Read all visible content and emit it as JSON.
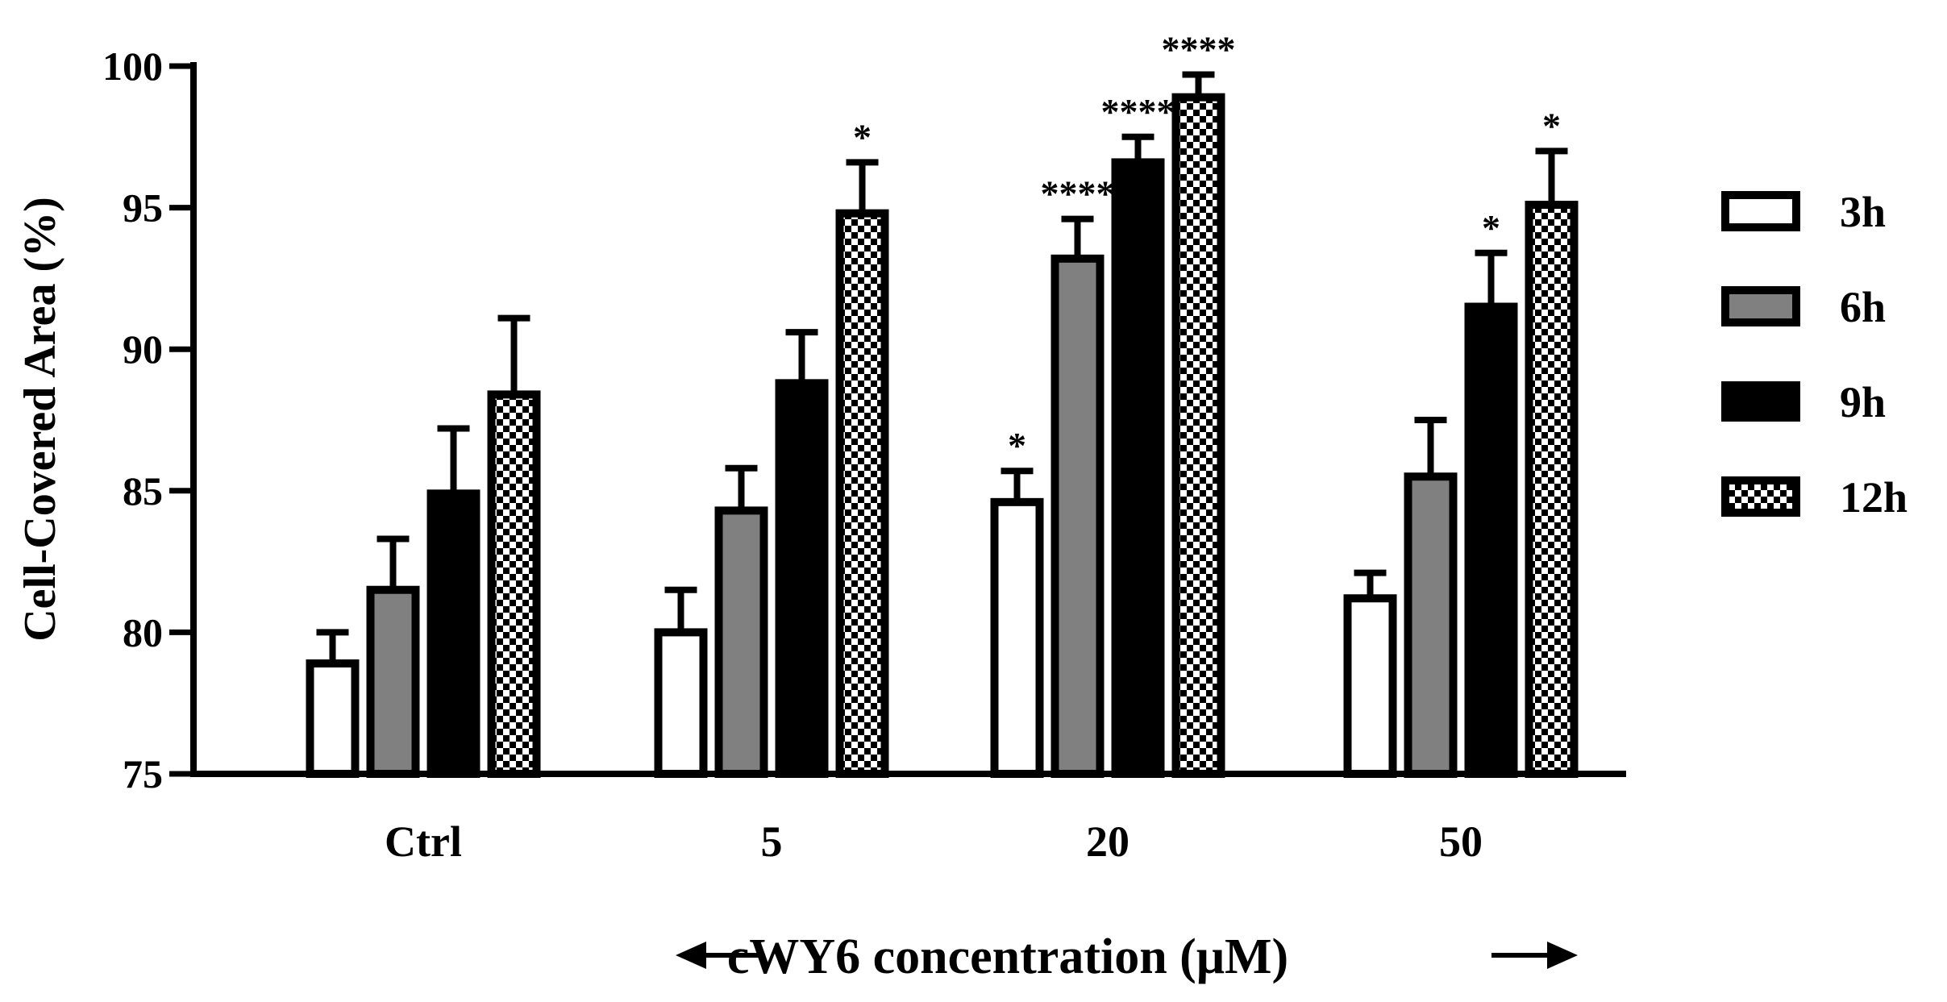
{
  "chart_data": {
    "type": "bar",
    "title": "",
    "ylabel": "Cell-Covered Area (%)",
    "xlabel": "cWY6 concentration (μM)",
    "ylim": [
      75,
      100
    ],
    "yticks": [
      75,
      80,
      85,
      90,
      95,
      100
    ],
    "categories": [
      "Ctrl",
      "5",
      "20",
      "50"
    ],
    "legend_position": "right",
    "series": [
      {
        "name": "3h",
        "fill": "white",
        "values": [
          78.9,
          80.0,
          84.6,
          81.2
        ],
        "errors": [
          1.1,
          1.5,
          1.1,
          0.9
        ],
        "significance": [
          "",
          "",
          "*",
          ""
        ]
      },
      {
        "name": "6h",
        "fill": "gray",
        "values": [
          81.5,
          84.3,
          93.2,
          85.5
        ],
        "errors": [
          1.8,
          1.5,
          1.4,
          2.0
        ],
        "significance": [
          "",
          "",
          "****",
          ""
        ]
      },
      {
        "name": "9h",
        "fill": "black",
        "values": [
          84.9,
          88.8,
          96.6,
          91.5
        ],
        "errors": [
          2.3,
          1.8,
          0.9,
          1.9
        ],
        "significance": [
          "",
          "",
          "****",
          "*"
        ]
      },
      {
        "name": "12h",
        "fill": "checker",
        "values": [
          88.4,
          94.8,
          98.9,
          95.1
        ],
        "errors": [
          2.7,
          1.8,
          0.8,
          1.9
        ],
        "significance": [
          "",
          "*",
          "****",
          "*"
        ]
      }
    ],
    "colors": {
      "gray": "#808080",
      "black": "#000000",
      "white": "#ffffff"
    }
  }
}
